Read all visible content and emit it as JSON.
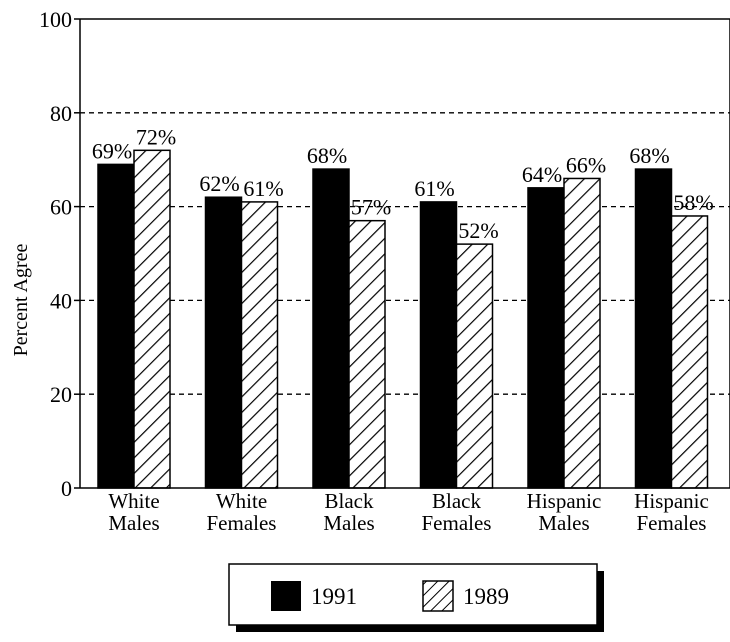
{
  "chart_data": {
    "type": "bar",
    "title": "",
    "xlabel": "",
    "ylabel": "Percent Agree",
    "ylim": [
      0,
      100
    ],
    "yticks": [
      0,
      20,
      40,
      60,
      80,
      100
    ],
    "grid": "dashed horizontal at 20, 60, 80",
    "legend_position": "bottom-center",
    "categories": [
      [
        "White",
        "Males"
      ],
      [
        "White",
        "Females"
      ],
      [
        "Black",
        "Males"
      ],
      [
        "Black",
        "Females"
      ],
      [
        "Hispanic",
        "Males"
      ],
      [
        "Hispanic",
        "Females"
      ]
    ],
    "series": [
      {
        "name": "1991",
        "fill": "solid-black",
        "values": [
          69,
          62,
          68,
          61,
          64,
          68
        ],
        "labels": [
          "69%",
          "62%",
          "68%",
          "61%",
          "64%",
          "68%"
        ]
      },
      {
        "name": "1989",
        "fill": "diagonal-hatch",
        "values": [
          72,
          61,
          57,
          52,
          66,
          58
        ],
        "labels": [
          "72%",
          "61%",
          "57%",
          "52%",
          "66%",
          "58%"
        ]
      }
    ]
  },
  "colors": {
    "bar_solid": "#000000",
    "bar_hatch_bg": "#ffffff",
    "line": "#000000"
  }
}
